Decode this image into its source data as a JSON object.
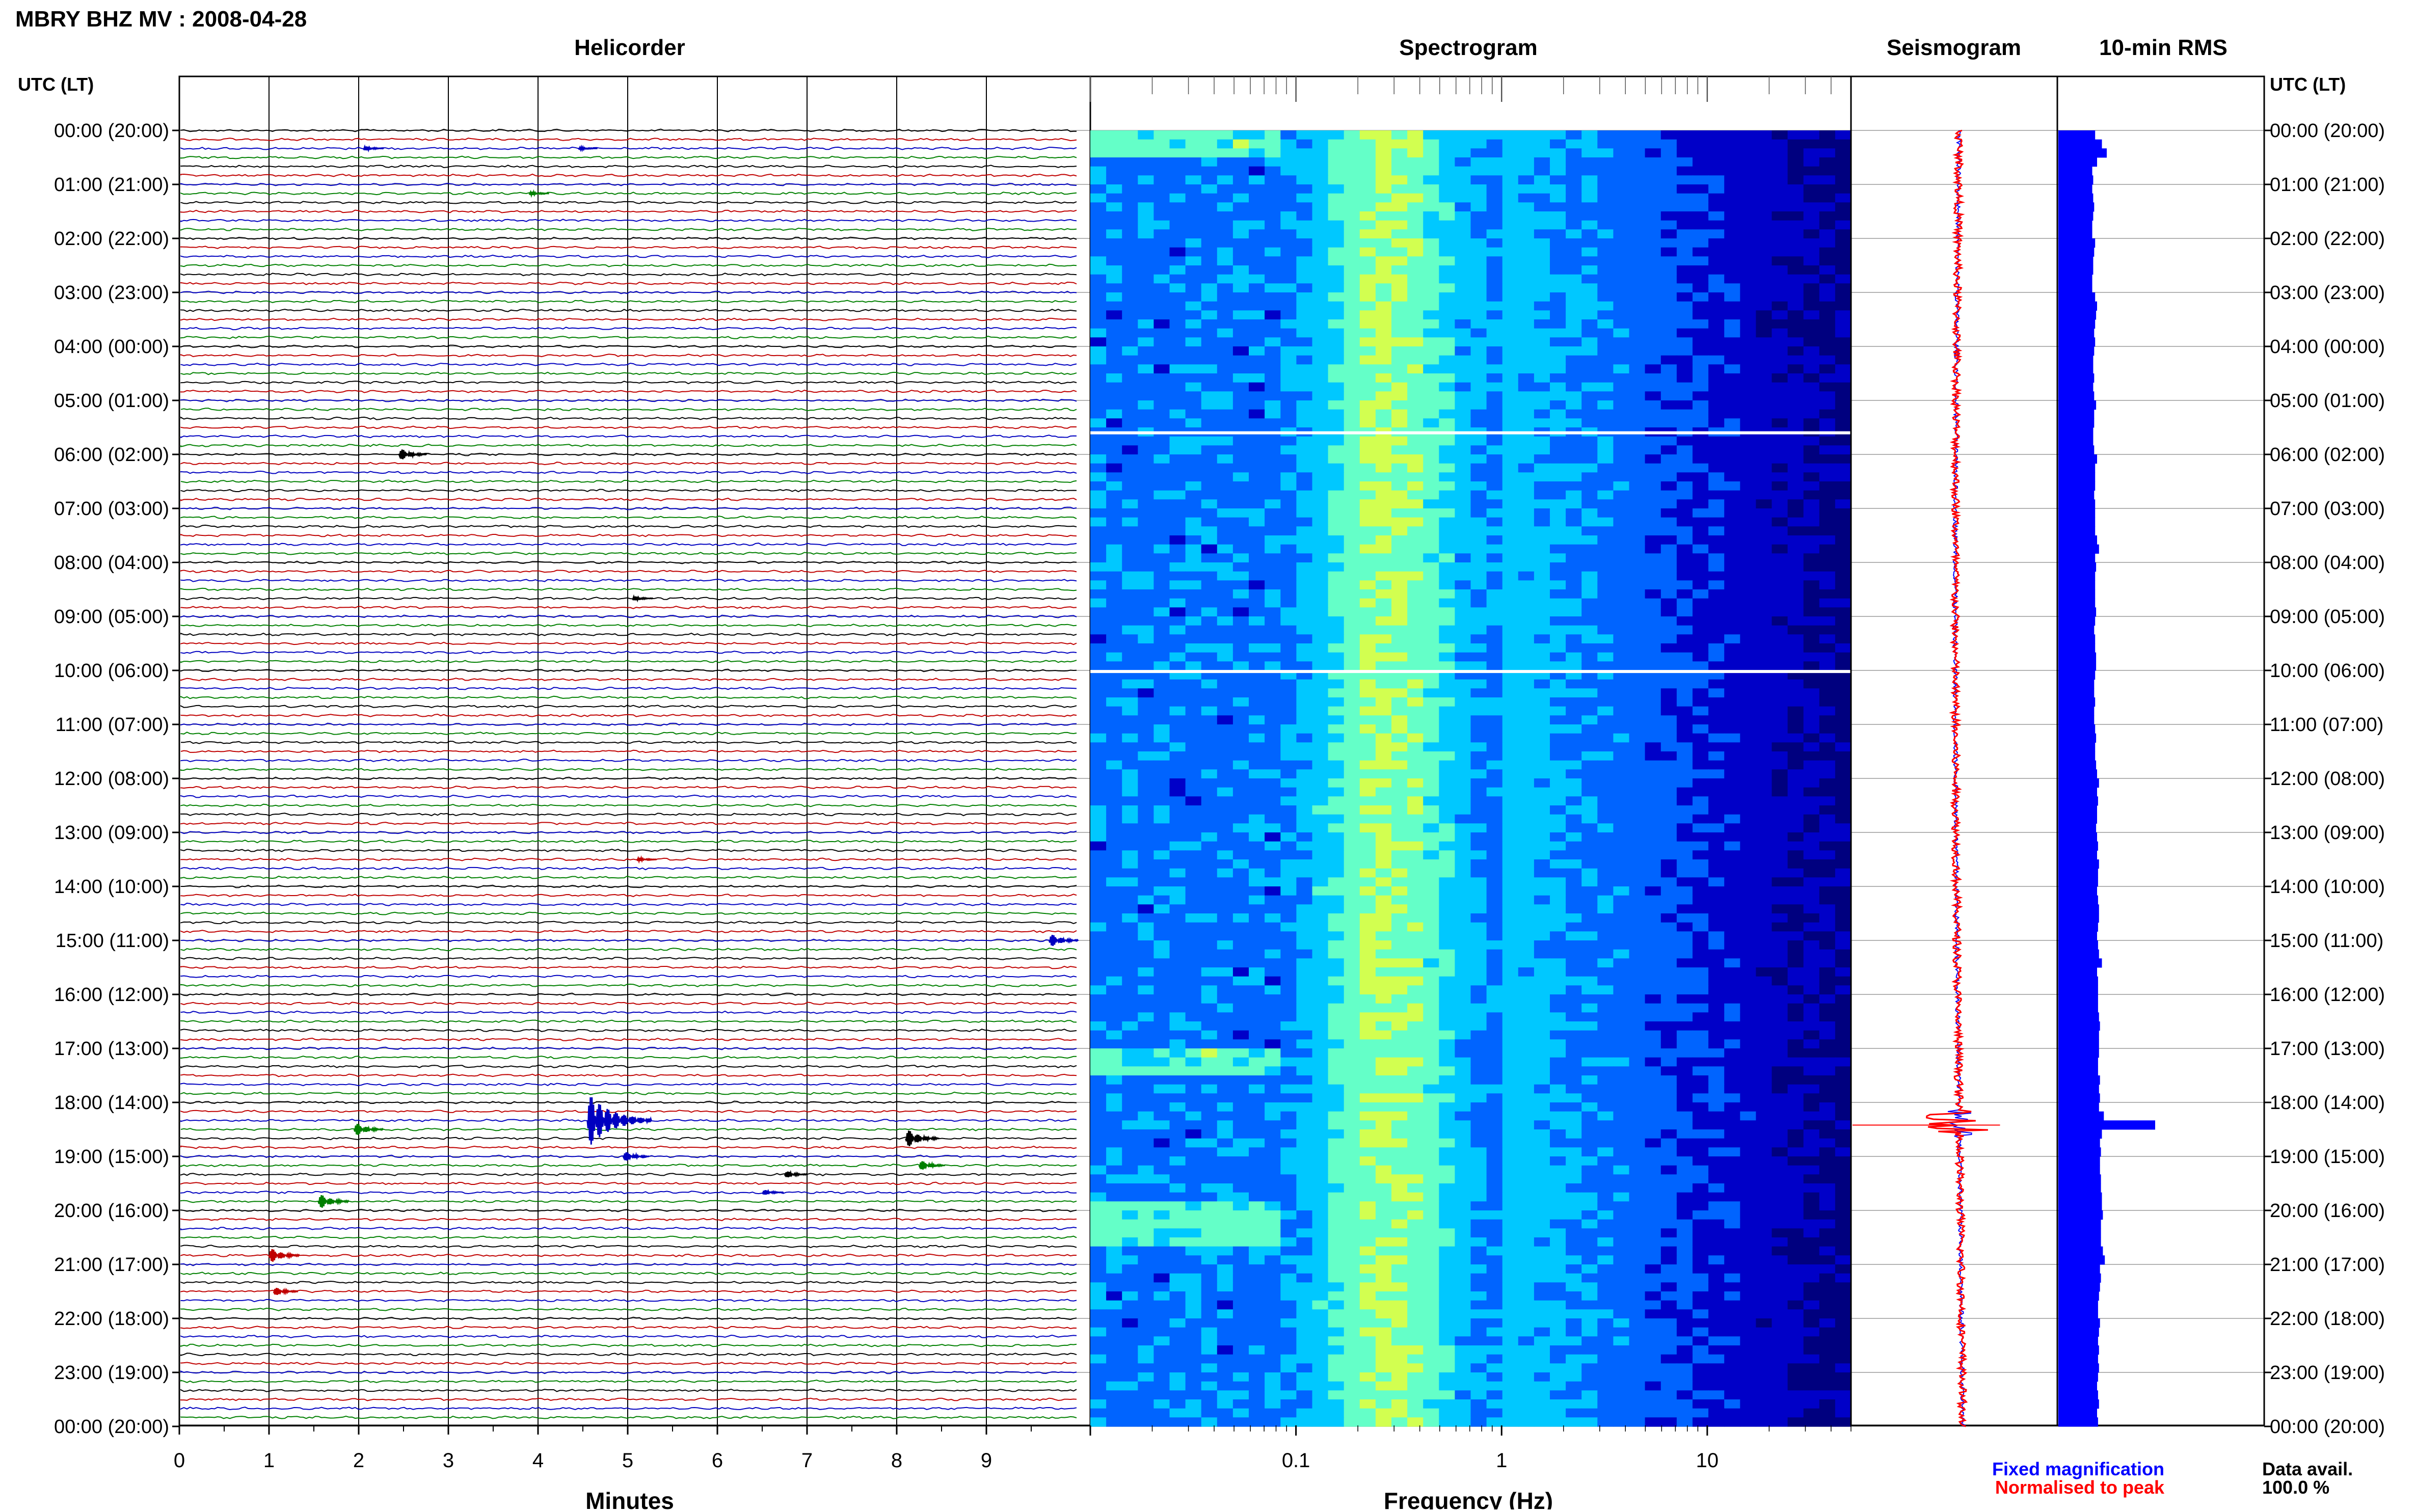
{
  "title": "MBRY BHZ MV : 2008-04-28",
  "utc_header_left": "UTC (LT)",
  "utc_header_right": "UTC (LT)",
  "chart_data": [
    {
      "type": "line",
      "panel": "helicorder",
      "title": "Helicorder",
      "xlabel": "Minutes",
      "xlim": [
        0,
        10
      ],
      "x_ticks": [
        "0",
        "1",
        "2",
        "3",
        "4",
        "5",
        "6",
        "7",
        "8",
        "9"
      ],
      "y_ticks": [
        "00:00 (20:00)",
        "01:00 (21:00)",
        "02:00 (22:00)",
        "03:00 (23:00)",
        "04:00 (00:00)",
        "05:00 (01:00)",
        "06:00 (02:00)",
        "07:00 (03:00)",
        "08:00 (04:00)",
        "09:00 (05:00)",
        "10:00 (06:00)",
        "11:00 (07:00)",
        "12:00 (08:00)",
        "13:00 (09:00)",
        "14:00 (10:00)",
        "15:00 (11:00)",
        "16:00 (12:00)",
        "17:00 (13:00)",
        "18:00 (14:00)",
        "19:00 (15:00)",
        "20:00 (16:00)",
        "21:00 (17:00)",
        "22:00 (18:00)",
        "23:00 (19:00)",
        "00:00 (20:00)"
      ],
      "trace_colors": [
        "#000000",
        "#c00000",
        "#0000c0",
        "#008000"
      ],
      "traces_per_hour": 6,
      "events": [
        {
          "hour": 0.33,
          "minute": 2.05,
          "amp": 0.35
        },
        {
          "hour": 0.33,
          "minute": 4.45,
          "amp": 0.25
        },
        {
          "hour": 1.17,
          "minute": 3.9,
          "amp": 0.3
        },
        {
          "hour": 6.0,
          "minute": 2.45,
          "amp": 0.8
        },
        {
          "hour": 8.67,
          "minute": 5.05,
          "amp": 0.35
        },
        {
          "hour": 13.5,
          "minute": 5.1,
          "amp": 0.3
        },
        {
          "hour": 15.0,
          "minute": 9.7,
          "amp": 0.9
        },
        {
          "hour": 18.33,
          "minute": 4.55,
          "amp": 3.2
        },
        {
          "hour": 18.5,
          "minute": 1.95,
          "amp": 0.9
        },
        {
          "hour": 18.67,
          "minute": 8.1,
          "amp": 1.2
        },
        {
          "hour": 19.0,
          "minute": 4.95,
          "amp": 0.7
        },
        {
          "hour": 19.17,
          "minute": 8.25,
          "amp": 0.7
        },
        {
          "hour": 19.33,
          "minute": 6.75,
          "amp": 0.5
        },
        {
          "hour": 19.67,
          "minute": 6.5,
          "amp": 0.4
        },
        {
          "hour": 19.83,
          "minute": 1.55,
          "amp": 1.0
        },
        {
          "hour": 20.83,
          "minute": 1.0,
          "amp": 1.0
        },
        {
          "hour": 21.5,
          "minute": 1.05,
          "amp": 0.6
        }
      ]
    },
    {
      "type": "heatmap",
      "panel": "spectrogram",
      "title": "Spectrogram",
      "xlabel": "Frequency (Hz)",
      "x_scale": "log",
      "xlim": [
        0.01,
        50
      ],
      "x_ticks": [
        {
          "value": 0.1,
          "label": "0.1"
        },
        {
          "value": 1,
          "label": "1"
        },
        {
          "value": 10,
          "label": "10"
        }
      ],
      "colormap": [
        "#00007f",
        "#0000c8",
        "#0064ff",
        "#00c8ff",
        "#64ffc8",
        "#d2ff50"
      ],
      "gaps_hour": [
        5.6,
        10.02
      ]
    },
    {
      "type": "line",
      "panel": "seismogram",
      "title": "Seismogram",
      "legend": [
        {
          "name": "Fixed magnification",
          "color": "#0000ff"
        },
        {
          "name": "Normalised to peak",
          "color": "#ff0000"
        }
      ]
    },
    {
      "type": "bar",
      "panel": "rms",
      "title": "10-min RMS",
      "bar_color": "#0000ff",
      "bin_minutes": 10,
      "values": [
        0.38,
        0.45,
        0.5,
        0.4,
        0.35,
        0.36,
        0.35,
        0.36,
        0.37,
        0.36,
        0.35,
        0.35,
        0.38,
        0.37,
        0.36,
        0.36,
        0.35,
        0.35,
        0.38,
        0.4,
        0.39,
        0.38,
        0.37,
        0.38,
        0.37,
        0.36,
        0.36,
        0.37,
        0.36,
        0.37,
        0.39,
        0.37,
        0.37,
        0.36,
        0.36,
        0.37,
        0.4,
        0.38,
        0.38,
        0.38,
        0.37,
        0.38,
        0.38,
        0.38,
        0.38,
        0.4,
        0.42,
        0.38,
        0.39,
        0.38,
        0.38,
        0.38,
        0.38,
        0.39,
        0.38,
        0.37,
        0.38,
        0.38,
        0.39,
        0.39,
        0.38,
        0.37,
        0.37,
        0.38,
        0.37,
        0.37,
        0.38,
        0.39,
        0.38,
        0.38,
        0.39,
        0.4,
        0.42,
        0.4,
        0.41,
        0.4,
        0.4,
        0.39,
        0.4,
        0.41,
        0.4,
        0.42,
        0.41,
        0.41,
        0.4,
        0.41,
        0.42,
        0.42,
        0.41,
        0.4,
        0.41,
        0.42,
        0.45,
        0.4,
        0.41,
        0.41,
        0.41,
        0.41,
        0.42,
        0.43,
        0.42,
        0.42,
        0.42,
        0.41,
        0.41,
        0.43,
        0.42,
        0.43,
        0.42,
        0.47,
        1.0,
        0.45,
        0.43,
        0.44,
        0.43,
        0.43,
        0.44,
        0.44,
        0.45,
        0.45,
        0.46,
        0.44,
        0.44,
        0.44,
        0.46,
        0.48,
        0.43,
        0.44,
        0.43,
        0.42,
        0.41,
        0.41,
        0.43,
        0.42,
        0.41,
        0.42,
        0.41,
        0.42,
        0.41,
        0.4,
        0.41,
        0.42,
        0.4,
        0.41
      ]
    }
  ],
  "footer": {
    "data_avail_label": "Data avail.",
    "data_avail_value": "100.0 %"
  }
}
